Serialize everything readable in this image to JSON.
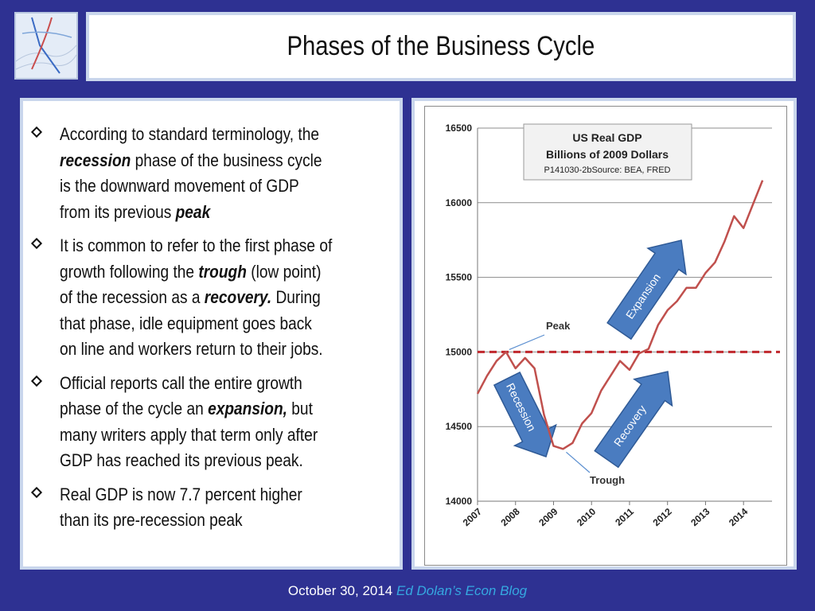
{
  "slide": {
    "title": "Phases of the Business Cycle",
    "bullets": [
      {
        "lines": [
          [
            {
              "t": "According to standard terminology, the"
            }
          ],
          [
            {
              "t": "recession",
              "b": true
            },
            {
              "t": " phase of the business cycle"
            }
          ],
          [
            {
              "t": "is the downward movement of GDP"
            }
          ],
          [
            {
              "t": "from its previous "
            },
            {
              "t": "peak",
              "b": true
            }
          ]
        ]
      },
      {
        "lines": [
          [
            {
              "t": "It is common to refer to the first phase of"
            }
          ],
          [
            {
              "t": "growth following the "
            },
            {
              "t": "trough",
              "b": true
            },
            {
              "t": " (low point)"
            }
          ],
          [
            {
              "t": "of the recession as a "
            },
            {
              "t": "recovery.",
              "b": true
            },
            {
              "t": " During"
            }
          ],
          [
            {
              "t": "that phase, idle equipment  goes back"
            }
          ],
          [
            {
              "t": "on line and workers return to their jobs."
            }
          ]
        ]
      },
      {
        "lines": [
          [
            {
              "t": "Official reports call the entire growth"
            }
          ],
          [
            {
              "t": "phase of the cycle an "
            },
            {
              "t": "expansion,",
              "b": true
            },
            {
              "t": " but"
            }
          ],
          [
            {
              "t": "many writers apply that term only after"
            }
          ],
          [
            {
              "t": "GDP has reached its previous peak."
            }
          ]
        ]
      },
      {
        "lines": [
          [
            {
              "t": "Real GDP is now 7.7 percent higher"
            }
          ],
          [
            {
              "t": "than its pre-recession peak"
            }
          ]
        ]
      }
    ]
  },
  "footer": {
    "date": "October 30, 2014 ",
    "blog": "Ed Dolan’s Econ Blog",
    "blog_color": "#35a8e0"
  },
  "chart_data": {
    "type": "line",
    "title_lines": [
      "US Real GDP",
      "Billions of 2009 Dollars",
      "P141030-2bSource: BEA, FRED"
    ],
    "ylim": [
      14000,
      16500
    ],
    "y_ticks": [
      "14000",
      "14500",
      "15000",
      "15500",
      "16000",
      "16500"
    ],
    "x_ticks": [
      "2007",
      "2008",
      "2009",
      "2010",
      "2011",
      "2012",
      "2013",
      "2014"
    ],
    "grid": true,
    "reference_line": {
      "y": 15000,
      "color": "#c0272d",
      "style": "dashed"
    },
    "series": [
      {
        "color": "#c0504d",
        "x": [
          2007.0,
          2007.25,
          2007.5,
          2007.75,
          2008.0,
          2008.25,
          2008.5,
          2008.75,
          2009.0,
          2009.25,
          2009.5,
          2009.75,
          2010.0,
          2010.25,
          2010.5,
          2010.75,
          2011.0,
          2011.25,
          2011.5,
          2011.75,
          2012.0,
          2012.25,
          2012.5,
          2012.75,
          2013.0,
          2013.25,
          2013.5,
          2013.75,
          2014.0,
          2014.25,
          2014.5
        ],
        "values": [
          14720,
          14840,
          14940,
          15000,
          14890,
          14960,
          14890,
          14580,
          14370,
          14350,
          14390,
          14520,
          14590,
          14740,
          14840,
          14940,
          14880,
          14990,
          15020,
          15180,
          15280,
          15340,
          15430,
          15430,
          15530,
          15600,
          15740,
          15910,
          15830,
          15990,
          16150
        ]
      }
    ],
    "annotations": [
      {
        "label": "Peak",
        "at": [
          2007.75,
          15000
        ]
      },
      {
        "label": "Trough",
        "at": [
          2009.25,
          14350
        ]
      }
    ],
    "arrows": [
      {
        "label": "Recession",
        "color": "#4a7cc0"
      },
      {
        "label": "Recovery",
        "color": "#4a7cc0"
      },
      {
        "label": "Expansion",
        "color": "#4a7cc0"
      }
    ]
  }
}
